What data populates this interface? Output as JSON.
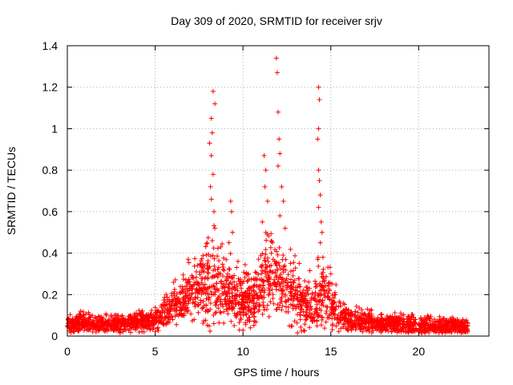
{
  "chart_data": {
    "type": "scatter",
    "title": "Day 309 of 2020, SRMTID for receiver srjv",
    "xlabel": "GPS time / hours",
    "ylabel": "SRMTID / TECUs",
    "xlim": [
      0,
      24
    ],
    "ylim": [
      0,
      1.4
    ],
    "xticks": [
      "0",
      "5",
      "10",
      "15",
      "20"
    ],
    "yticks": [
      "0",
      "0.2",
      "0.4",
      "0.6",
      "0.8",
      "1",
      "1.2",
      "1.4"
    ],
    "grid": true,
    "marker": "+",
    "color": "#ff0000",
    "x_range_observed": [
      0,
      22.8
    ],
    "series": [
      {
        "name": "srjv",
        "envelope": {
          "x": [
            0,
            1,
            2,
            3,
            4,
            5,
            5.5,
            6,
            6.5,
            7,
            7.5,
            8,
            8.5,
            9,
            9.5,
            10,
            10.5,
            11,
            11.5,
            12,
            12.5,
            13,
            13.5,
            14,
            14.5,
            15,
            15.5,
            16,
            16.5,
            17,
            18,
            19,
            20,
            21,
            22,
            22.8
          ],
          "typical": [
            0.06,
            0.06,
            0.06,
            0.06,
            0.07,
            0.08,
            0.11,
            0.14,
            0.16,
            0.2,
            0.24,
            0.26,
            0.24,
            0.2,
            0.18,
            0.16,
            0.15,
            0.25,
            0.3,
            0.28,
            0.22,
            0.18,
            0.15,
            0.14,
            0.18,
            0.15,
            0.1,
            0.08,
            0.07,
            0.07,
            0.06,
            0.06,
            0.05,
            0.05,
            0.05,
            0.04
          ],
          "spread": [
            0.03,
            0.03,
            0.03,
            0.03,
            0.03,
            0.04,
            0.05,
            0.05,
            0.06,
            0.08,
            0.1,
            0.12,
            0.12,
            0.1,
            0.09,
            0.08,
            0.08,
            0.1,
            0.12,
            0.12,
            0.1,
            0.09,
            0.08,
            0.07,
            0.1,
            0.08,
            0.05,
            0.04,
            0.04,
            0.04,
            0.03,
            0.03,
            0.03,
            0.03,
            0.03,
            0.03
          ]
        },
        "spikes": [
          {
            "x": 8.3,
            "y": 1.18
          },
          {
            "x": 8.4,
            "y": 1.12
          },
          {
            "x": 8.2,
            "y": 1.05
          },
          {
            "x": 8.25,
            "y": 0.98
          },
          {
            "x": 8.1,
            "y": 0.93
          },
          {
            "x": 8.2,
            "y": 0.87
          },
          {
            "x": 8.3,
            "y": 0.78
          },
          {
            "x": 8.15,
            "y": 0.72
          },
          {
            "x": 8.2,
            "y": 0.66
          },
          {
            "x": 8.35,
            "y": 0.6
          },
          {
            "x": 8.4,
            "y": 0.52
          },
          {
            "x": 8.25,
            "y": 0.46
          },
          {
            "x": 9.3,
            "y": 0.65
          },
          {
            "x": 9.35,
            "y": 0.6
          },
          {
            "x": 9.4,
            "y": 0.5
          },
          {
            "x": 9.2,
            "y": 0.45
          },
          {
            "x": 11.2,
            "y": 0.87
          },
          {
            "x": 11.3,
            "y": 0.8
          },
          {
            "x": 11.25,
            "y": 0.72
          },
          {
            "x": 11.4,
            "y": 0.65
          },
          {
            "x": 11.1,
            "y": 0.55
          },
          {
            "x": 11.3,
            "y": 0.5
          },
          {
            "x": 11.9,
            "y": 1.34
          },
          {
            "x": 11.95,
            "y": 1.27
          },
          {
            "x": 12.0,
            "y": 1.08
          },
          {
            "x": 12.05,
            "y": 0.95
          },
          {
            "x": 12.1,
            "y": 0.88
          },
          {
            "x": 12.0,
            "y": 0.82
          },
          {
            "x": 12.2,
            "y": 0.72
          },
          {
            "x": 12.3,
            "y": 0.65
          },
          {
            "x": 12.1,
            "y": 0.58
          },
          {
            "x": 12.4,
            "y": 0.52
          },
          {
            "x": 14.3,
            "y": 1.2
          },
          {
            "x": 14.35,
            "y": 1.14
          },
          {
            "x": 14.3,
            "y": 1.0
          },
          {
            "x": 14.25,
            "y": 0.95
          },
          {
            "x": 14.3,
            "y": 0.8
          },
          {
            "x": 14.35,
            "y": 0.75
          },
          {
            "x": 14.4,
            "y": 0.68
          },
          {
            "x": 14.3,
            "y": 0.62
          },
          {
            "x": 14.45,
            "y": 0.55
          },
          {
            "x": 14.5,
            "y": 0.5
          },
          {
            "x": 14.4,
            "y": 0.45
          },
          {
            "x": 14.55,
            "y": 0.38
          },
          {
            "x": 13.2,
            "y": 0.35
          },
          {
            "x": 10.2,
            "y": 0.3
          },
          {
            "x": 15.0,
            "y": 0.3
          }
        ]
      }
    ]
  }
}
